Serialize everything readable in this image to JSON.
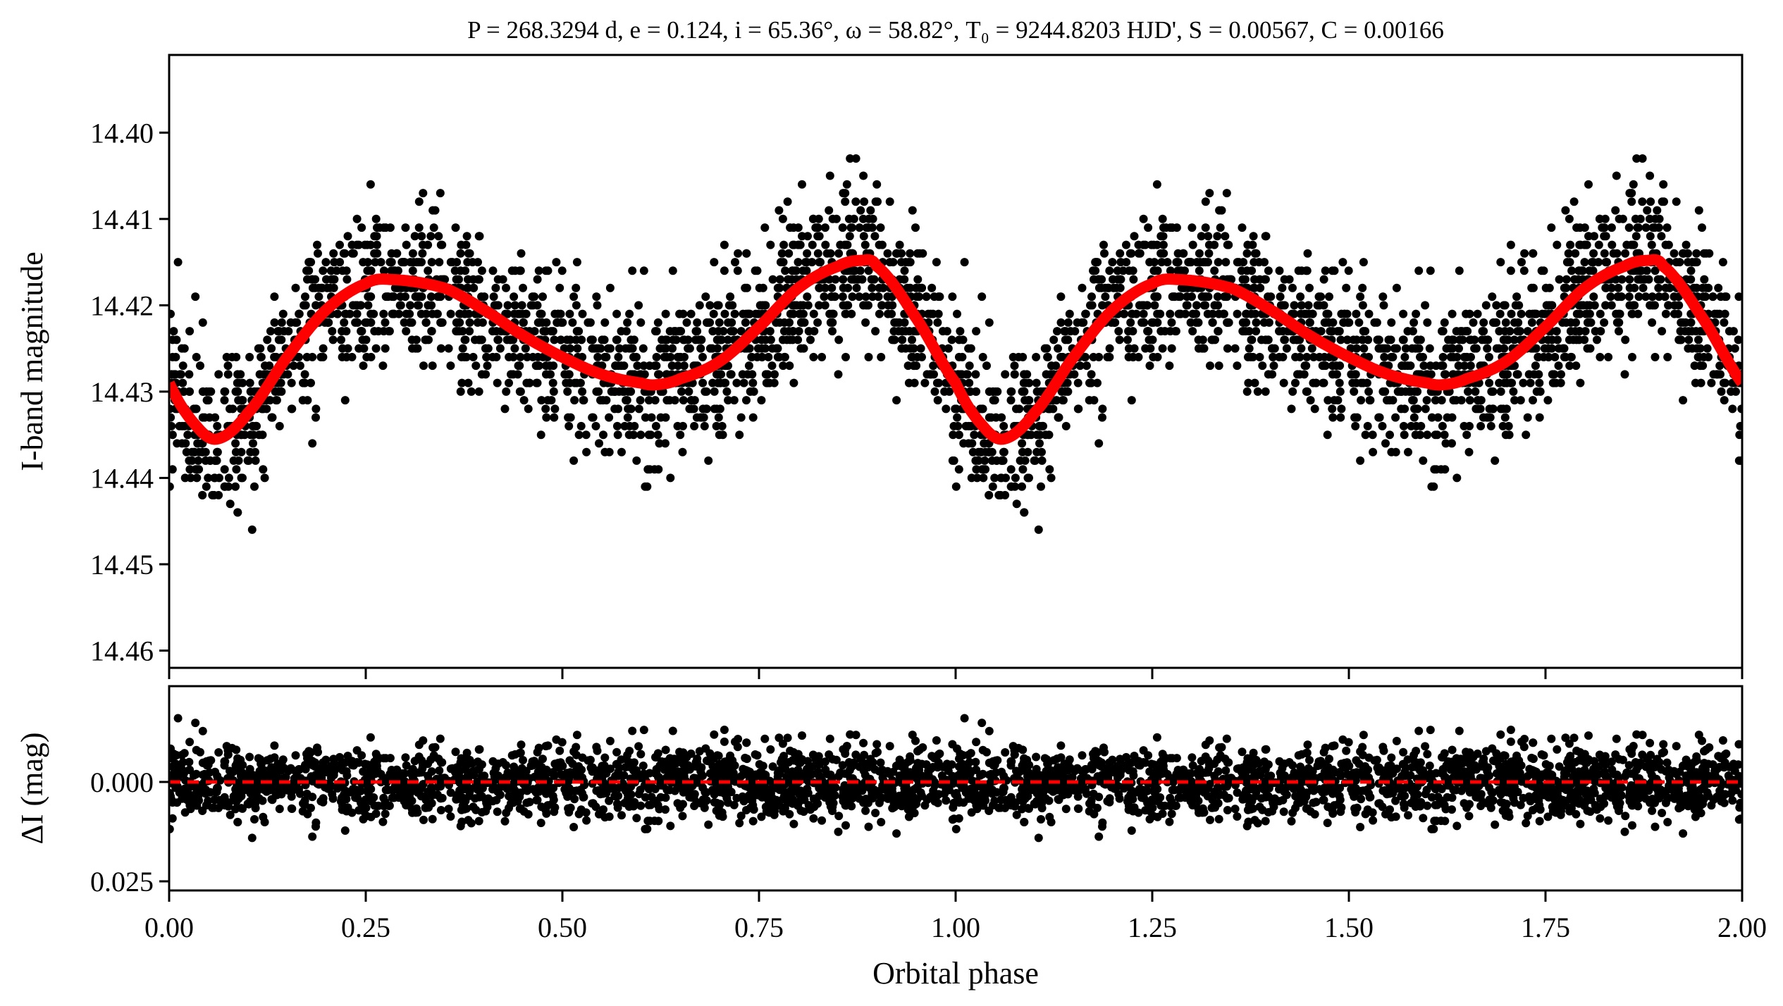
{
  "chart_data": [
    {
      "type": "scatter",
      "panel": "light-curve",
      "title": "P = 268.3294 d, e = 0.124, i = 65.36°, ω = 58.82°, T₀ = 9244.8203 HJD', S = 0.00567, C = 0.00166",
      "xlabel": "",
      "ylabel": "I-band magnitude",
      "xlim": [
        0,
        2
      ],
      "ylim": [
        14.462,
        14.391
      ],
      "y_inverted": true,
      "yticks": [
        "14.40",
        "14.41",
        "14.42",
        "14.43",
        "14.44",
        "14.45",
        "14.46"
      ],
      "ytick_values": [
        14.4,
        14.41,
        14.42,
        14.43,
        14.44,
        14.45,
        14.46
      ],
      "xtick_values": [
        0,
        0.25,
        0.5,
        0.75,
        1.0,
        1.25,
        1.5,
        1.75,
        2.0
      ],
      "grid": false,
      "series": [
        {
          "name": "observations",
          "kind": "points",
          "color": "#000000",
          "quantization_mag": 0.001,
          "scatter_sigma_mag": 0.0045,
          "points_per_cycle": 1700,
          "note_repeat": "phase 0-1 repeated at 1-2"
        },
        {
          "name": "model",
          "kind": "line",
          "color": "#ff0000",
          "phase": [
            0,
            0.03,
            0.06,
            0.1,
            0.15,
            0.2,
            0.25,
            0.28,
            0.35,
            0.4,
            0.45,
            0.5,
            0.55,
            0.6,
            0.62,
            0.65,
            0.7,
            0.75,
            0.8,
            0.85,
            0.88,
            0.9,
            0.95,
            1.0
          ],
          "mag": [
            14.429,
            14.4335,
            14.4355,
            14.4325,
            14.426,
            14.4205,
            14.4175,
            14.417,
            14.418,
            14.4205,
            14.4235,
            14.426,
            14.428,
            14.429,
            14.4292,
            14.4285,
            14.4265,
            14.4225,
            14.418,
            14.4155,
            14.4148,
            14.4155,
            14.4215,
            14.429
          ]
        }
      ]
    },
    {
      "type": "scatter",
      "panel": "residuals",
      "xlabel": "Orbital phase",
      "ylabel": "ΔI (mag)",
      "xlim": [
        0,
        2
      ],
      "ylim": [
        0.0273,
        -0.0241
      ],
      "y_inverted": true,
      "yticks": [
        "0.000",
        "0.025"
      ],
      "ytick_values": [
        0.0,
        0.025
      ],
      "xticks": [
        "0.00",
        "0.25",
        "0.50",
        "0.75",
        "1.00",
        "1.25",
        "1.50",
        "1.75",
        "2.00"
      ],
      "xtick_values": [
        0,
        0.25,
        0.5,
        0.75,
        1.0,
        1.25,
        1.5,
        1.75,
        2.0
      ],
      "grid": false,
      "series": [
        {
          "name": "residuals",
          "kind": "points",
          "color": "#000000",
          "range_mag": [
            -0.014,
            0.018
          ]
        },
        {
          "name": "zero-line",
          "kind": "dashed-line",
          "color": "#ff0000",
          "value": 0.0
        }
      ]
    }
  ]
}
